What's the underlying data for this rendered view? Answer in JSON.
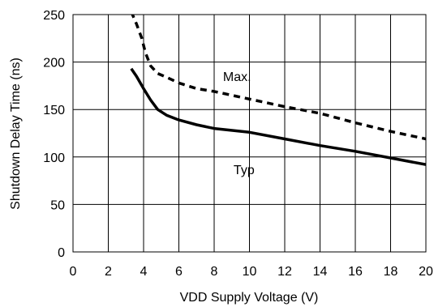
{
  "chart_data": {
    "type": "line",
    "title": "",
    "xlabel": "VDD Supply Voltage (V)",
    "ylabel": "Shutdown Delay Time (ns)",
    "xlim": [
      0,
      20
    ],
    "ylim": [
      0,
      250
    ],
    "xticks": [
      0,
      2,
      4,
      6,
      8,
      10,
      12,
      14,
      16,
      18,
      20
    ],
    "yticks": [
      0,
      50,
      100,
      150,
      200,
      250
    ],
    "grid": true,
    "series": [
      {
        "name": "Max.",
        "style": "dashed",
        "x": [
          3.3,
          3.6,
          3.9,
          4.1,
          4.4,
          4.8,
          5.3,
          6.0,
          7.0,
          8.0,
          10.0,
          12.0,
          14.0,
          16.0,
          18.0,
          20.0
        ],
        "y": [
          253,
          240,
          225,
          210,
          196,
          188,
          184,
          178,
          172,
          169,
          161,
          153,
          146,
          136,
          127,
          119
        ]
      },
      {
        "name": "Typ",
        "style": "solid",
        "x": [
          3.3,
          3.6,
          4.0,
          4.4,
          4.8,
          5.3,
          6.0,
          7.0,
          8.0,
          10.0,
          12.0,
          14.0,
          16.0,
          18.0,
          20.0
        ],
        "y": [
          193,
          185,
          172,
          160,
          150,
          144,
          139,
          134,
          130,
          126,
          119,
          112,
          106,
          99,
          92
        ]
      }
    ],
    "annotations": [
      {
        "text": "Max.",
        "x": 8.5,
        "y": 180
      },
      {
        "text": "Typ",
        "x": 9.1,
        "y": 82
      }
    ],
    "colors": {
      "line": "#000000",
      "grid": "#000000",
      "background": "#ffffff"
    }
  }
}
